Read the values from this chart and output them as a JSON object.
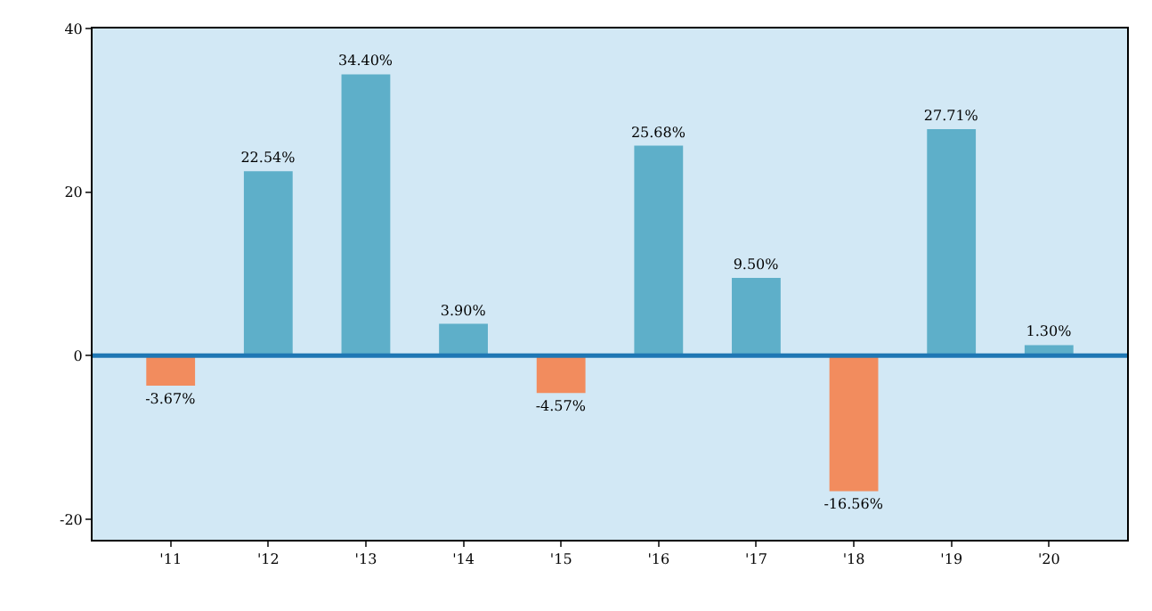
{
  "chart_data": {
    "type": "bar",
    "categories": [
      "'11",
      "'12",
      "'13",
      "'14",
      "'15",
      "'16",
      "'17",
      "'18",
      "'19",
      "'20"
    ],
    "values": [
      -3.67,
      22.54,
      34.4,
      3.9,
      -4.57,
      25.68,
      9.5,
      -16.56,
      27.71,
      1.3
    ],
    "colors": [
      "#f28c5e",
      "#5eafc9",
      "#5eafc9",
      "#5eafc9",
      "#f28c5e",
      "#5eafc9",
      "#5eafc9",
      "#f28c5e",
      "#5eafc9",
      "#5eafc9"
    ],
    "value_labels": [
      "-3.67%",
      "22.54%",
      "34.40%",
      "3.90%",
      "-4.57%",
      "25.68%",
      "9.50%",
      "-16.56%",
      "27.71%",
      "1.30%"
    ],
    "ylim": [
      -22.5,
      40
    ],
    "yticks": [
      -20,
      0,
      20,
      40
    ],
    "grid": false,
    "ref_lines": [
      {
        "axis": "y",
        "value": 0,
        "color": "#1f77b4"
      }
    ]
  }
}
